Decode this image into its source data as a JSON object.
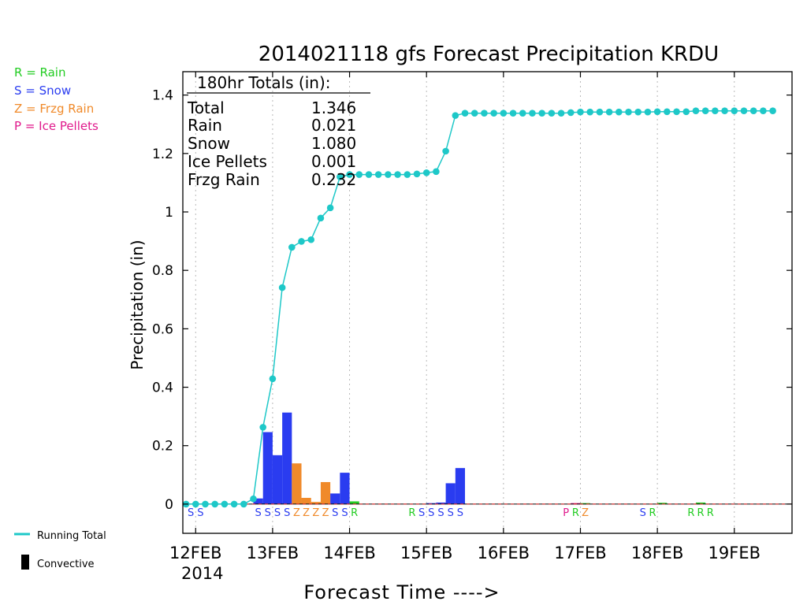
{
  "chart_data": {
    "type": "bar",
    "title": "2014021118 gfs Forecast Precipitation KRDU",
    "xlabel": "Forecast Time ---->",
    "ylabel": "Precipitation (in)",
    "ylim": [
      -0.1,
      1.48
    ],
    "yticks": [
      0,
      0.2,
      0.4,
      0.6,
      0.8,
      1,
      1.2,
      1.4
    ],
    "ytick_labels": [
      "0",
      "0.2",
      "0.4",
      "0.6",
      "0.8",
      "1",
      "1.2",
      "1.4"
    ],
    "xlim_hours": [
      -4,
      186
    ],
    "xtick_hours": [
      0,
      24,
      48,
      72,
      96,
      120,
      144,
      168
    ],
    "xtick_labels": [
      "12FEB",
      "13FEB",
      "14FEB",
      "15FEB",
      "16FEB",
      "17FEB",
      "18FEB",
      "19FEB"
    ],
    "xaxis_sublabel": "2014",
    "grid": "vertical dotted",
    "legend": {
      "precip_types": [
        {
          "code": "R",
          "label": "R = Rain",
          "color": "#22cc22"
        },
        {
          "code": "S",
          "label": "S = Snow",
          "color": "#2a3cf0"
        },
        {
          "code": "Z",
          "label": "Z = Frzg Rain",
          "color": "#f08a2a"
        },
        {
          "code": "P",
          "label": "P = Ice Pellets",
          "color": "#e01a8c"
        }
      ],
      "running_total": {
        "label": "Running Total",
        "color": "#1ec8c8"
      },
      "convective": {
        "label": "Convective",
        "color": "#000000"
      }
    },
    "totals_box": {
      "header": "180hr Totals (in):",
      "rows": [
        {
          "name": "Total",
          "value": "1.346"
        },
        {
          "name": "Rain",
          "value": "0.021"
        },
        {
          "name": "Snow",
          "value": "1.080"
        },
        {
          "name": "Ice Pellets",
          "value": "0.001"
        },
        {
          "name": "Frzg Rain",
          "value": "0.232"
        }
      ]
    },
    "bars": [
      {
        "start": 18,
        "end": 21,
        "value": 0.018,
        "type": "S"
      },
      {
        "start": 21,
        "end": 24,
        "value": 0.245,
        "type": "S"
      },
      {
        "start": 24,
        "end": 27,
        "value": 0.166,
        "type": "S"
      },
      {
        "start": 27,
        "end": 30,
        "value": 0.312,
        "type": "S"
      },
      {
        "start": 30,
        "end": 33,
        "value": 0.138,
        "type": "Z"
      },
      {
        "start": 33,
        "end": 36,
        "value": 0.02,
        "type": "Z"
      },
      {
        "start": 36,
        "end": 39,
        "value": 0.006,
        "type": "Z"
      },
      {
        "start": 39,
        "end": 42,
        "value": 0.074,
        "type": "Z"
      },
      {
        "start": 42,
        "end": 45,
        "value": 0.035,
        "type": "S"
      },
      {
        "start": 45,
        "end": 48,
        "value": 0.106,
        "type": "S"
      },
      {
        "start": 48,
        "end": 51,
        "value": 0.008,
        "type": "R"
      },
      {
        "start": 72,
        "end": 75,
        "value": 0.002,
        "type": "S"
      },
      {
        "start": 75,
        "end": 78,
        "value": 0.004,
        "type": "S"
      },
      {
        "start": 78,
        "end": 81,
        "value": 0.07,
        "type": "S"
      },
      {
        "start": 81,
        "end": 84,
        "value": 0.122,
        "type": "S"
      },
      {
        "start": 117,
        "end": 120,
        "value": 0.002,
        "type": "P"
      },
      {
        "start": 120,
        "end": 123,
        "value": 0.002,
        "type": "R"
      },
      {
        "start": 144,
        "end": 147,
        "value": 0.003,
        "type": "R"
      },
      {
        "start": 156,
        "end": 159,
        "value": 0.004,
        "type": "R"
      }
    ],
    "type_markers": [
      {
        "hour": -3,
        "code": "S"
      },
      {
        "hour": 0,
        "code": "S"
      },
      {
        "hour": 18,
        "code": "S"
      },
      {
        "hour": 21,
        "code": "S"
      },
      {
        "hour": 24,
        "code": "S"
      },
      {
        "hour": 27,
        "code": "S"
      },
      {
        "hour": 30,
        "code": "Z"
      },
      {
        "hour": 33,
        "code": "Z"
      },
      {
        "hour": 36,
        "code": "Z"
      },
      {
        "hour": 39,
        "code": "Z"
      },
      {
        "hour": 42,
        "code": "S"
      },
      {
        "hour": 45,
        "code": "S"
      },
      {
        "hour": 48,
        "code": "R"
      },
      {
        "hour": 66,
        "code": "R"
      },
      {
        "hour": 69,
        "code": "S"
      },
      {
        "hour": 72,
        "code": "S"
      },
      {
        "hour": 75,
        "code": "S"
      },
      {
        "hour": 78,
        "code": "S"
      },
      {
        "hour": 81,
        "code": "S"
      },
      {
        "hour": 114,
        "code": "P"
      },
      {
        "hour": 117,
        "code": "R"
      },
      {
        "hour": 120,
        "code": "Z"
      },
      {
        "hour": 138,
        "code": "S"
      },
      {
        "hour": 141,
        "code": "R"
      },
      {
        "hour": 153,
        "code": "R"
      },
      {
        "hour": 156,
        "code": "R"
      },
      {
        "hour": 159,
        "code": "R"
      }
    ],
    "running_total_series": {
      "name": "Running Total",
      "hours": [
        -3,
        0,
        3,
        6,
        9,
        12,
        15,
        18,
        21,
        24,
        27,
        30,
        33,
        36,
        39,
        42,
        45,
        48,
        51,
        54,
        57,
        60,
        63,
        66,
        69,
        72,
        75,
        78,
        81,
        84,
        87,
        90,
        93,
        96,
        99,
        102,
        105,
        108,
        111,
        114,
        117,
        120,
        123,
        126,
        129,
        132,
        135,
        138,
        141,
        144,
        147,
        150,
        153,
        156,
        159,
        162,
        165,
        168,
        171,
        174,
        177,
        180
      ],
      "values": [
        0,
        0,
        0,
        0,
        0,
        0,
        0,
        0.018,
        0.263,
        0.429,
        0.741,
        0.879,
        0.899,
        0.905,
        0.979,
        1.014,
        1.12,
        1.128,
        1.128,
        1.128,
        1.128,
        1.128,
        1.128,
        1.128,
        1.13,
        1.134,
        1.138,
        1.208,
        1.33,
        1.338,
        1.338,
        1.338,
        1.338,
        1.338,
        1.338,
        1.338,
        1.338,
        1.338,
        1.338,
        1.338,
        1.34,
        1.342,
        1.342,
        1.342,
        1.342,
        1.342,
        1.342,
        1.342,
        1.342,
        1.343,
        1.343,
        1.343,
        1.343,
        1.346,
        1.346,
        1.346,
        1.346,
        1.346,
        1.346,
        1.346,
        1.346,
        1.346
      ]
    }
  }
}
